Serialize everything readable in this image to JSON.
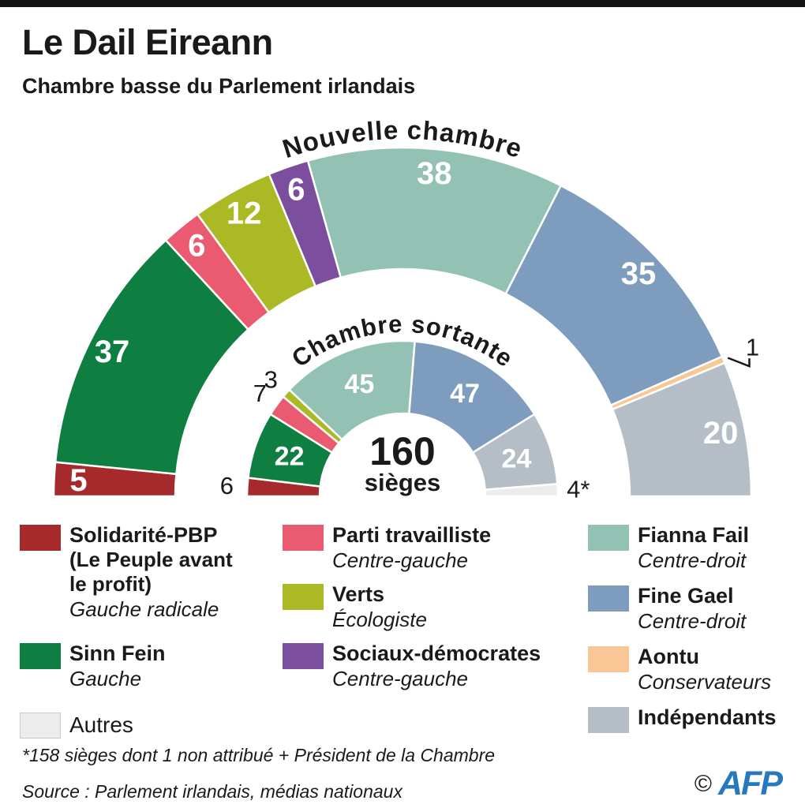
{
  "header": {
    "title": "Le Dail Eireann",
    "subtitle": "Chambre basse du Parlement irlandais"
  },
  "chart_data": {
    "type": "parliament-semicircle-donut",
    "center": {
      "value": "160",
      "unit": "sièges"
    },
    "rings": [
      {
        "id": "outer",
        "title": "Nouvelle chambre",
        "total_seats": 160,
        "segments": [
          {
            "party": "Solidarité-PBP",
            "seats": 5,
            "color": "#a62a2c",
            "label_style": "inside"
          },
          {
            "party": "Sinn Fein",
            "seats": 37,
            "color": "#0e7f41",
            "label_style": "inside"
          },
          {
            "party": "Parti travailliste",
            "seats": 6,
            "color": "#ea5a70",
            "label_style": "inside"
          },
          {
            "party": "Verts",
            "seats": 12,
            "color": "#abb924",
            "label_style": "inside"
          },
          {
            "party": "Sociaux-démocrates",
            "seats": 6,
            "color": "#7c4e9e",
            "label_style": "inside"
          },
          {
            "party": "Fianna Fail",
            "seats": 38,
            "color": "#93c1b4",
            "label_style": "inside"
          },
          {
            "party": "Fine Gael",
            "seats": 35,
            "color": "#7d9cbe",
            "label_style": "inside"
          },
          {
            "party": "Aontu",
            "seats": 1,
            "color": "#f8c795",
            "label_style": "callout"
          },
          {
            "party": "Indépendants",
            "seats": 20,
            "color": "#b5bec7",
            "label_style": "inside"
          }
        ]
      },
      {
        "id": "inner",
        "title": "Chambre sortante",
        "total_seats": 158,
        "segments": [
          {
            "party": "Solidarité-PBP",
            "seats": 6,
            "color": "#a62a2c",
            "label_style": "outside"
          },
          {
            "party": "Sinn Fein",
            "seats": 22,
            "color": "#0e7f41",
            "label_style": "inside"
          },
          {
            "party": "Parti travailliste",
            "seats": 7,
            "color": "#ea5a70",
            "label_style": "outside"
          },
          {
            "party": "Verts",
            "seats": 3,
            "color": "#abb924",
            "label_style": "outside"
          },
          {
            "party": "Fianna Fail",
            "seats": 45,
            "color": "#93c1b4",
            "label_style": "inside"
          },
          {
            "party": "Fine Gael",
            "seats": 47,
            "color": "#7d9cbe",
            "label_style": "inside"
          },
          {
            "party": "Indépendants",
            "seats": 24,
            "color": "#b5bec7",
            "label_style": "inside"
          },
          {
            "party": "Autres",
            "seats": 4,
            "display": "4*",
            "color": "#ececec",
            "label_style": "outside"
          }
        ]
      }
    ]
  },
  "legend": {
    "columns": [
      [
        {
          "color": "#a62a2c",
          "name": "Solidarité-PBP",
          "name_extra": [
            "(Le Peuple avant",
            "le profit)"
          ],
          "orientation": "Gauche radicale"
        },
        {
          "color": "#0e7f41",
          "name": "Sinn Fein",
          "orientation": "Gauche"
        },
        {
          "color": "#ececec",
          "name": "Autres",
          "plain": true,
          "swatch_border": "#c9c9c9"
        }
      ],
      [
        {
          "color": "#ea5a70",
          "name": "Parti travailliste",
          "orientation": "Centre-gauche"
        },
        {
          "color": "#abb924",
          "name": "Verts",
          "orientation": "Écologiste"
        },
        {
          "color": "#7c4e9e",
          "name": "Sociaux-démocrates",
          "orientation": "Centre-gauche"
        }
      ],
      [
        {
          "color": "#93c1b4",
          "name": "Fianna Fail",
          "orientation": "Centre-droit"
        },
        {
          "color": "#7d9cbe",
          "name": "Fine Gael",
          "orientation": "Centre-droit"
        },
        {
          "color": "#f8c795",
          "name": "Aontu",
          "orientation": "Conservateurs"
        },
        {
          "color": "#b5bec7",
          "name": "Indépendants"
        }
      ]
    ]
  },
  "footer": {
    "footnote": "*158 sièges dont 1 non attribué + Président de la Chambre",
    "source": "Source : Parlement irlandais, médias nationaux",
    "credit_symbol": "©",
    "credit": "AFP"
  }
}
